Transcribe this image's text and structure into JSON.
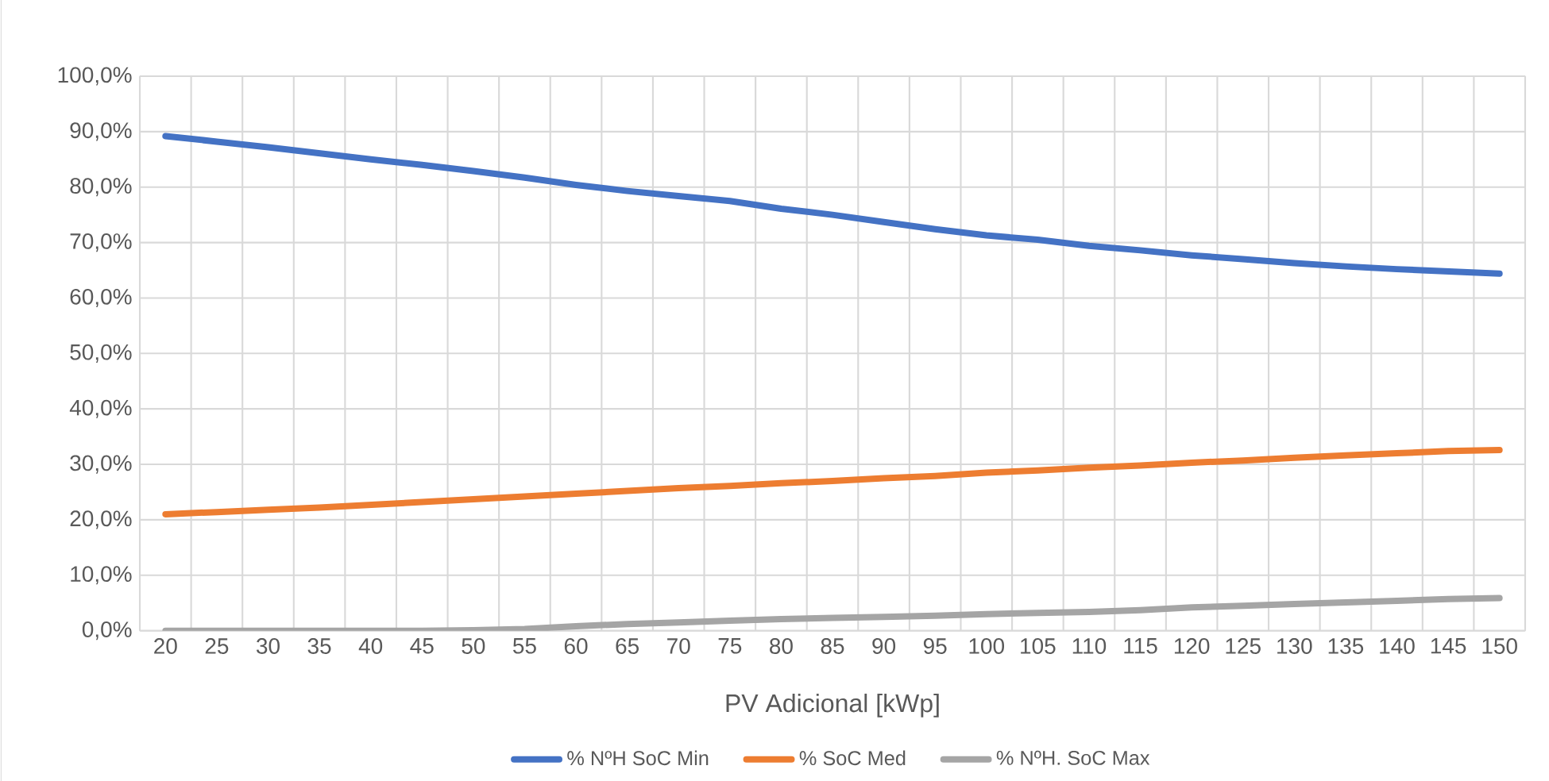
{
  "chart_data": {
    "type": "line",
    "xlabel": "PV Adicional [kWp]",
    "categories": [
      "20",
      "25",
      "30",
      "35",
      "40",
      "45",
      "50",
      "55",
      "60",
      "65",
      "70",
      "75",
      "80",
      "85",
      "90",
      "95",
      "100",
      "105",
      "110",
      "115",
      "120",
      "125",
      "130",
      "135",
      "140",
      "145",
      "150"
    ],
    "series": [
      {
        "name": "% NºH SoC Min",
        "color": "#4472c4",
        "values": [
          89.2,
          88.2,
          87.2,
          86.1,
          85.0,
          84.0,
          82.9,
          81.7,
          80.4,
          79.3,
          78.4,
          77.5,
          76.1,
          75.0,
          73.7,
          72.4,
          71.3,
          70.5,
          69.4,
          68.6,
          67.7,
          67.0,
          66.3,
          65.7,
          65.2,
          64.8,
          64.4
        ]
      },
      {
        "name": "% SoC Med",
        "color": "#ed7d31",
        "values": [
          21.0,
          21.4,
          21.8,
          22.2,
          22.7,
          23.2,
          23.7,
          24.2,
          24.7,
          25.2,
          25.7,
          26.1,
          26.6,
          27.0,
          27.5,
          27.9,
          28.5,
          28.9,
          29.4,
          29.8,
          30.3,
          30.7,
          31.2,
          31.6,
          32.0,
          32.4,
          32.6
        ]
      },
      {
        "name": "% NºH. SoC Max",
        "color": "#a5a5a5",
        "values": [
          0,
          0,
          0,
          0,
          0,
          0,
          0.1,
          0.3,
          0.8,
          1.2,
          1.5,
          1.8,
          2.1,
          2.3,
          2.5,
          2.7,
          3.0,
          3.2,
          3.4,
          3.7,
          4.2,
          4.5,
          4.8,
          5.1,
          5.4,
          5.7,
          5.9
        ]
      }
    ],
    "ylim": [
      0,
      100
    ],
    "yticks": [
      {
        "value": 0,
        "label": "0,0%"
      },
      {
        "value": 10,
        "label": "10,0%"
      },
      {
        "value": 20,
        "label": "20,0%"
      },
      {
        "value": 30,
        "label": "30,0%"
      },
      {
        "value": 40,
        "label": "40,0%"
      },
      {
        "value": 50,
        "label": "50,0%"
      },
      {
        "value": 60,
        "label": "60,0%"
      },
      {
        "value": 70,
        "label": "70,0%"
      },
      {
        "value": 80,
        "label": "80,0%"
      },
      {
        "value": 90,
        "label": "90,0%"
      },
      {
        "value": 100,
        "label": "100,0%"
      }
    ],
    "grid": true,
    "legend": "bottom",
    "marker": "none",
    "line_style": "solid"
  }
}
